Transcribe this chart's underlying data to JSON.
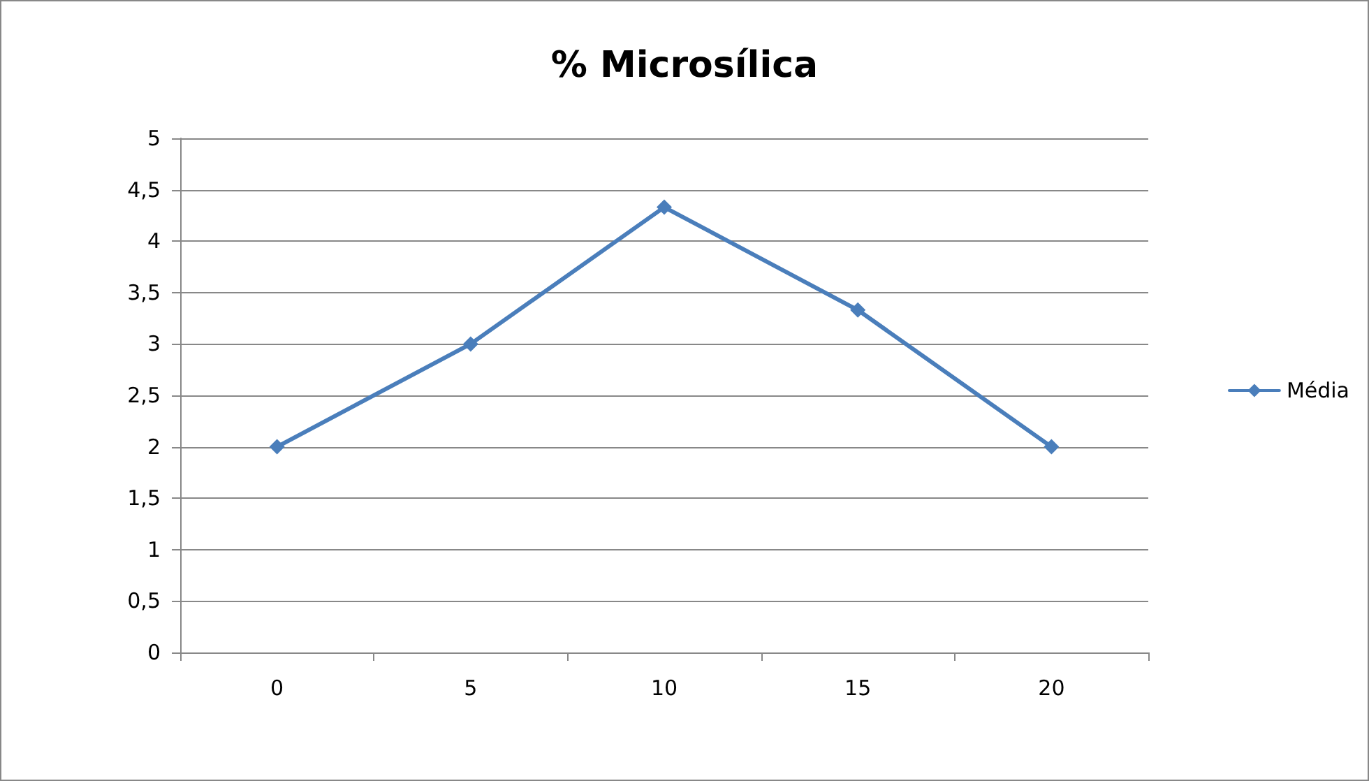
{
  "chart_data": {
    "type": "line",
    "title": "% Microsílica",
    "categories": [
      "0",
      "5",
      "10",
      "15",
      "20"
    ],
    "series": [
      {
        "name": "Média",
        "color": "#4a7ebb",
        "values": [
          2,
          3,
          4.33,
          3.33,
          2
        ]
      }
    ],
    "ylim": [
      0,
      5
    ],
    "yticks": [
      0,
      {
        "value": 0.5,
        "label": "0,5"
      },
      1,
      {
        "value": 1.5,
        "label": "1,5"
      },
      2,
      {
        "value": 2.5,
        "label": "2,5"
      },
      3,
      {
        "value": 3.5,
        "label": "3,5"
      },
      4,
      {
        "value": 4.5,
        "label": "4,5"
      },
      5
    ],
    "grid": "y",
    "legend": "right",
    "marker": "diamond",
    "line_style": "solid"
  }
}
